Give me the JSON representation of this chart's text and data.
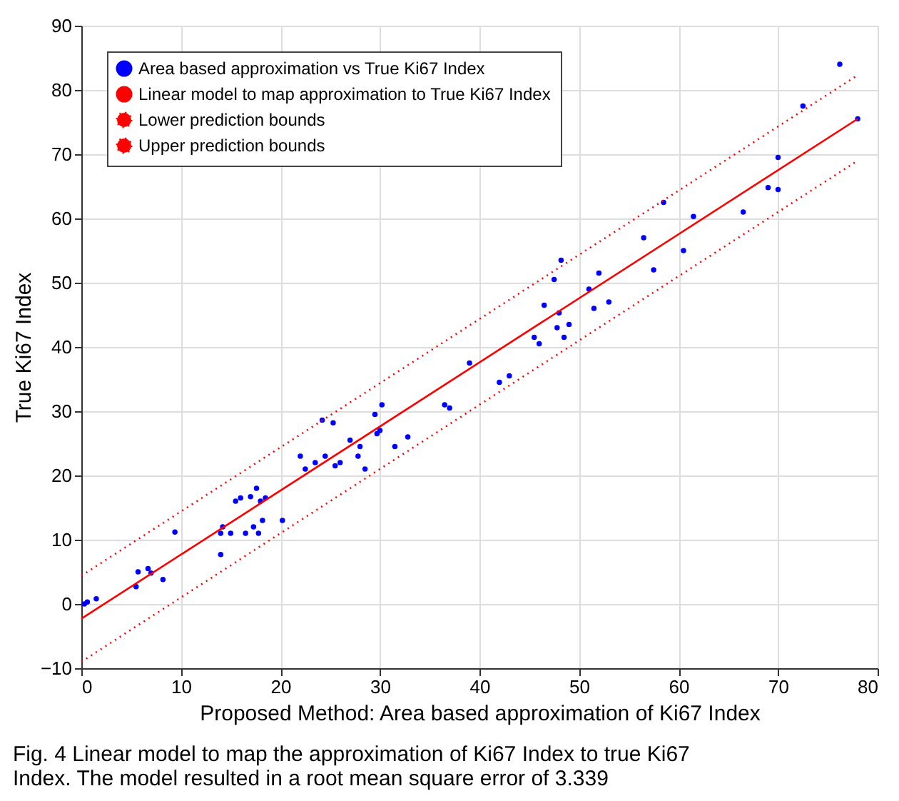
{
  "chart_data": {
    "type": "scatter",
    "xlabel": "Proposed Method: Area based approximation of Ki67 Index",
    "ylabel": "True Ki67 Index",
    "xlim": [
      0,
      80
    ],
    "xticks": [
      0,
      10,
      20,
      30,
      40,
      50,
      60,
      70,
      80
    ],
    "ylim": [
      -10,
      90
    ],
    "yticks": [
      -10,
      0,
      10,
      20,
      30,
      40,
      50,
      60,
      70,
      80,
      90
    ],
    "grid": true,
    "legend": "top left",
    "annotations": [
      "Fig. 4 Linear model to map the approximation of Ki67 Index to true Ki67 Index. The model resulted in a root mean square error of 3.339"
    ],
    "series": [
      {
        "name": "Area based approximation vs True Ki67 Index",
        "marker": "circle",
        "color": "#0000ff",
        "x": [
          0.3,
          0.6,
          1.5,
          5.5,
          5.7,
          6.7,
          7,
          8.2,
          9.4,
          14,
          14,
          14.2,
          15,
          15.5,
          16,
          16.5,
          17,
          17.3,
          17.6,
          17.8,
          18,
          18.2,
          18.5,
          20.2,
          22,
          22.5,
          23.5,
          24.2,
          24.5,
          25.3,
          25.5,
          26,
          27,
          27.8,
          28,
          28.5,
          29.5,
          29.7,
          30,
          30.2,
          31.5,
          32.8,
          36.5,
          37,
          39,
          42,
          43,
          45.5,
          46,
          46.5,
          47.5,
          47.8,
          48,
          48.2,
          48.5,
          49,
          51,
          51.5,
          52,
          53,
          56.5,
          57.5,
          58.5,
          60.5,
          61.5,
          66.5,
          69,
          70,
          70,
          72.5,
          76.2,
          78
        ],
        "values": [
          0,
          0.3,
          0.8,
          2.7,
          5,
          5.5,
          4.8,
          3.8,
          11.2,
          7.7,
          11,
          12,
          11,
          16,
          16.5,
          11,
          16.7,
          12,
          18,
          11,
          16,
          13,
          16.5,
          13,
          23,
          21,
          22,
          28.6,
          23,
          28.2,
          21.5,
          22,
          25.5,
          23,
          24.5,
          21,
          29.5,
          26.5,
          27,
          31,
          24.5,
          26,
          31,
          30.5,
          37.5,
          34.5,
          35.5,
          41.5,
          40.5,
          46.5,
          50.5,
          43,
          45.3,
          53.5,
          41.5,
          43.5,
          49,
          46,
          51.5,
          47,
          57,
          52,
          62.5,
          55,
          60.3,
          61,
          64.8,
          64.5,
          69.5,
          77.5,
          84,
          75.5
        ]
      },
      {
        "name": "Linear model to map approximation to True Ki67 Index",
        "type": "line",
        "line_style": "solid",
        "color": "#ff0000",
        "x": [
          0,
          78
        ],
        "values": [
          -2.3,
          75.5
        ]
      },
      {
        "name": "Lower prediction bounds",
        "type": "line",
        "line_style": "dotted",
        "color": "#ff0000",
        "x": [
          0,
          78
        ],
        "values": [
          -9,
          69
        ]
      },
      {
        "name": "Upper prediction bounds",
        "type": "line",
        "line_style": "dotted",
        "color": "#ff0000",
        "x": [
          0,
          78
        ],
        "values": [
          4.4,
          82.3
        ]
      }
    ]
  }
}
